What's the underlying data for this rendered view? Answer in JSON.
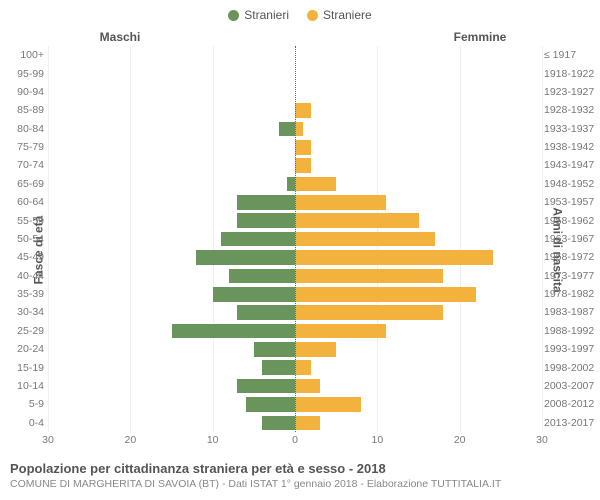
{
  "legend": {
    "male": {
      "label": "Stranieri",
      "color": "#69945c"
    },
    "female": {
      "label": "Straniere",
      "color": "#f3b23e"
    }
  },
  "headers": {
    "male": "Maschi",
    "female": "Femmine"
  },
  "axis_titles": {
    "left": "Fasce di età",
    "right": "Anni di nascita"
  },
  "chart": {
    "type": "population-pyramid",
    "xmax": 30,
    "x_ticks_left": [
      30,
      20,
      10,
      0
    ],
    "x_ticks_right": [
      0,
      10,
      20,
      30
    ],
    "bar_color_male": "#69945c",
    "bar_color_female": "#f3b23e",
    "background_color": "#ffffff",
    "grid_color": "#eeeeee",
    "axis_dot_color": "#666666",
    "label_fontsize": 10.5,
    "rows": [
      {
        "age": "100+",
        "birth": "≤ 1917",
        "male": 0,
        "female": 0
      },
      {
        "age": "95-99",
        "birth": "1918-1922",
        "male": 0,
        "female": 0
      },
      {
        "age": "90-94",
        "birth": "1923-1927",
        "male": 0,
        "female": 0
      },
      {
        "age": "85-89",
        "birth": "1928-1932",
        "male": 0,
        "female": 2
      },
      {
        "age": "80-84",
        "birth": "1933-1937",
        "male": 2,
        "female": 1
      },
      {
        "age": "75-79",
        "birth": "1938-1942",
        "male": 0,
        "female": 2
      },
      {
        "age": "70-74",
        "birth": "1943-1947",
        "male": 0,
        "female": 2
      },
      {
        "age": "65-69",
        "birth": "1948-1952",
        "male": 1,
        "female": 5
      },
      {
        "age": "60-64",
        "birth": "1953-1957",
        "male": 7,
        "female": 11
      },
      {
        "age": "55-59",
        "birth": "1958-1962",
        "male": 7,
        "female": 15
      },
      {
        "age": "50-54",
        "birth": "1963-1967",
        "male": 9,
        "female": 17
      },
      {
        "age": "45-49",
        "birth": "1968-1972",
        "male": 12,
        "female": 24
      },
      {
        "age": "40-44",
        "birth": "1973-1977",
        "male": 8,
        "female": 18
      },
      {
        "age": "35-39",
        "birth": "1978-1982",
        "male": 10,
        "female": 22
      },
      {
        "age": "30-34",
        "birth": "1983-1987",
        "male": 7,
        "female": 18
      },
      {
        "age": "25-29",
        "birth": "1988-1992",
        "male": 15,
        "female": 11
      },
      {
        "age": "20-24",
        "birth": "1993-1997",
        "male": 5,
        "female": 5
      },
      {
        "age": "15-19",
        "birth": "1998-2002",
        "male": 4,
        "female": 2
      },
      {
        "age": "10-14",
        "birth": "2003-2007",
        "male": 7,
        "female": 3
      },
      {
        "age": "5-9",
        "birth": "2008-2012",
        "male": 6,
        "female": 8
      },
      {
        "age": "0-4",
        "birth": "2013-2017",
        "male": 4,
        "female": 3
      }
    ]
  },
  "footer": {
    "title": "Popolazione per cittadinanza straniera per età e sesso - 2018",
    "subtitle": "COMUNE DI MARGHERITA DI SAVOIA (BT) - Dati ISTAT 1° gennaio 2018 - Elaborazione TUTTITALIA.IT"
  }
}
